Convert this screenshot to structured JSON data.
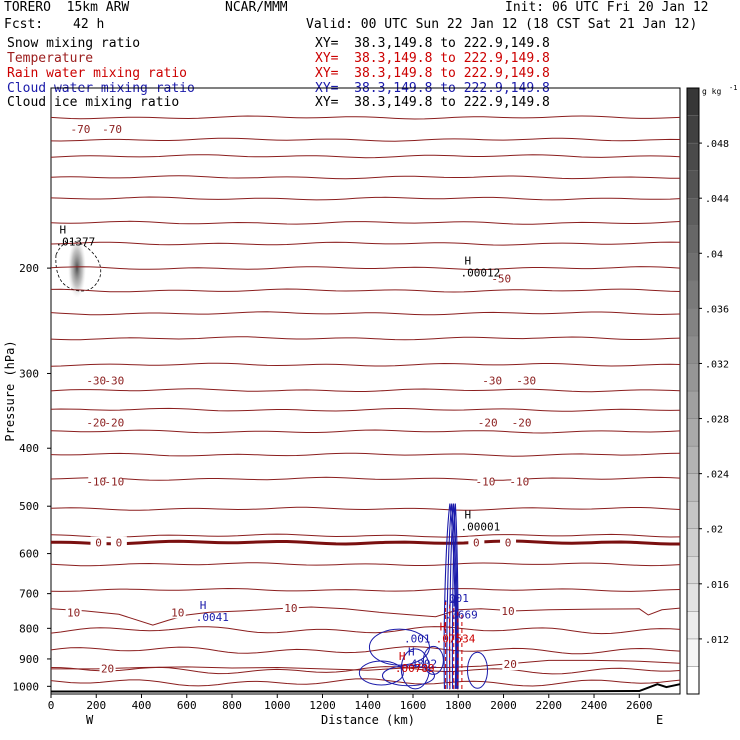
{
  "header": {
    "model": "TORERO  15km ARW",
    "center": "NCAR/MMM",
    "init": "Init: 06 UTC Fri 20 Jan 12",
    "fcst_label": "Fcst:",
    "fcst_value": "42 h",
    "valid": "Valid: 00 UTC Sun 22 Jan 12 (18 CST Sat 21 Jan 12)"
  },
  "fields": [
    {
      "name": "Snow mixing ratio",
      "color": "#000000",
      "xy": "XY=  38.3,149.8 to 222.9,149.8",
      "xy_color": "#000000"
    },
    {
      "name": "Temperature",
      "color": "#9b1c1c",
      "xy": "XY=  38.3,149.8 to 222.9,149.8",
      "xy_color": "#cc0000"
    },
    {
      "name": "Rain water mixing ratio",
      "color": "#cc0000",
      "xy": "XY=  38.3,149.8 to 222.9,149.8",
      "xy_color": "#cc0000"
    },
    {
      "name": "Cloud water mixing ratio",
      "color": "#1a1aaa",
      "xy": "XY=  38.3,149.8 to 222.9,149.8",
      "xy_color": "#1a1aaa"
    },
    {
      "name": "Cloud ice mixing ratio",
      "color": "#000000",
      "xy": "XY=  38.3,149.8 to 222.9,149.8",
      "xy_color": "#000000"
    }
  ],
  "chart_data": {
    "type": "cross-section contour",
    "xlabel": "Distance (km)",
    "ylabel": "Pressure (hPa)",
    "xlim": [
      0,
      2780
    ],
    "ylim": [
      1030,
      100
    ],
    "y_scale": "log",
    "x_ticks": [
      0,
      200,
      400,
      600,
      800,
      1000,
      1200,
      1400,
      1600,
      1800,
      2000,
      2200,
      2400,
      2600
    ],
    "y_ticks": [
      200,
      300,
      400,
      500,
      600,
      700,
      800,
      900,
      1000
    ],
    "x_endpoints": {
      "left": "W",
      "right": "E"
    },
    "temperature_labels": [
      {
        "text": "-70",
        "x": 130,
        "p": 117
      },
      {
        "text": "-70",
        "x": 270,
        "p": 117
      },
      {
        "text": "-50",
        "x": 1990,
        "p": 208
      },
      {
        "text": "-30",
        "x": 200,
        "p": 308
      },
      {
        "text": "-30",
        "x": 280,
        "p": 308
      },
      {
        "text": "-30",
        "x": 1950,
        "p": 308
      },
      {
        "text": "-30",
        "x": 2100,
        "p": 308
      },
      {
        "text": "-20",
        "x": 200,
        "p": 362
      },
      {
        "text": "-20",
        "x": 280,
        "p": 362
      },
      {
        "text": "-20",
        "x": 1930,
        "p": 362
      },
      {
        "text": "-20",
        "x": 2080,
        "p": 362
      },
      {
        "text": "-10",
        "x": 200,
        "p": 455
      },
      {
        "text": "-10",
        "x": 280,
        "p": 455
      },
      {
        "text": "-10",
        "x": 1920,
        "p": 455
      },
      {
        "text": "-10",
        "x": 2070,
        "p": 455
      },
      {
        "text": "0",
        "x": 210,
        "p": 575
      },
      {
        "text": "0",
        "x": 300,
        "p": 575
      },
      {
        "text": "0",
        "x": 1880,
        "p": 575
      },
      {
        "text": "0",
        "x": 2020,
        "p": 575
      },
      {
        "text": "10",
        "x": 100,
        "p": 752
      },
      {
        "text": "10",
        "x": 560,
        "p": 752
      },
      {
        "text": "10",
        "x": 1060,
        "p": 740
      },
      {
        "text": "10",
        "x": 2020,
        "p": 748
      },
      {
        "text": "20",
        "x": 250,
        "p": 933
      },
      {
        "text": "20",
        "x": 2030,
        "p": 918
      }
    ],
    "extrema_labels": [
      {
        "marker": "H",
        "value": ".01377",
        "x": 20,
        "p": 182,
        "color": "#000000"
      },
      {
        "marker": "H",
        "value": ".00012",
        "x": 1810,
        "p": 205,
        "color": "#000000"
      },
      {
        "marker": "H",
        "value": ".00001",
        "x": 1810,
        "p": 545,
        "color": "#000000"
      },
      {
        "marker": "H",
        "value": ".0041",
        "x": 640,
        "p": 772,
        "color": "#1a1aaa"
      },
      {
        "marker": "",
        "value": ".001",
        "x": 1730,
        "p": 718,
        "color": "#1a1aaa"
      },
      {
        "marker": "H",
        "value": ".3669",
        "x": 1740,
        "p": 765,
        "color": "#1a1aaa"
      },
      {
        "marker": "",
        "value": ".001",
        "x": 1560,
        "p": 838,
        "color": "#1a1aaa"
      },
      {
        "marker": "H",
        "value": ".07534",
        "x": 1700,
        "p": 838,
        "color": "#cc0000"
      },
      {
        "marker": "H",
        "value": ".4802",
        "x": 1560,
        "p": 923,
        "color": "#1a1aaa"
      },
      {
        "marker": "H",
        "value": ".00789",
        "x": 1520,
        "p": 940,
        "color": "#cc0000"
      }
    ],
    "colorbar": {
      "unit": "g kg",
      "unit_exp": "-1",
      "ticks": [
        0.012,
        0.016,
        0.02,
        0.024,
        0.028,
        0.032,
        0.036,
        0.04,
        0.044,
        0.048
      ],
      "tick_labels": [
        ".012",
        ".016",
        ".02",
        ".024",
        ".028",
        ".032",
        ".036",
        ".04",
        ".044",
        ".048"
      ],
      "range": [
        0.008,
        0.052
      ]
    },
    "terrain": [
      [
        0,
        1020
      ],
      [
        2000,
        1020
      ],
      [
        2600,
        1018
      ],
      [
        2680,
        992
      ],
      [
        2720,
        1003
      ],
      [
        2780,
        992
      ]
    ]
  }
}
